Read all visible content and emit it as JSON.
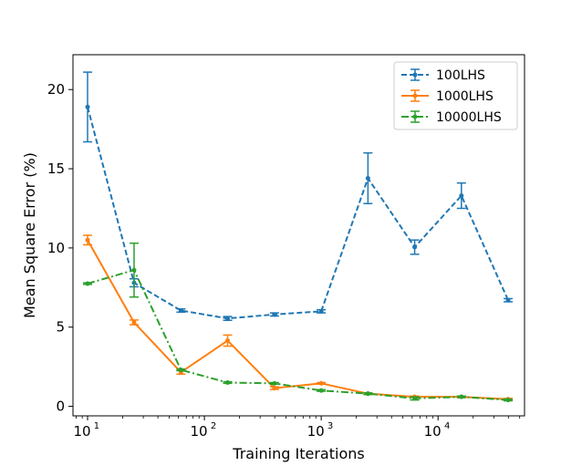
{
  "chart_data": {
    "type": "line",
    "title": "",
    "xlabel": "Training Iterations",
    "ylabel": "Mean Square Error (%)",
    "xscale": "log",
    "xlim": [
      7.5,
      55000
    ],
    "ylim": [
      -0.6,
      22.2
    ],
    "yticks": [
      0,
      5,
      10,
      15,
      20
    ],
    "xticks": [
      {
        "value": 10,
        "base": "10",
        "exp": "1"
      },
      {
        "value": 100,
        "base": "10",
        "exp": "2"
      },
      {
        "value": 1000,
        "base": "10",
        "exp": "3"
      },
      {
        "value": 10000,
        "base": "10",
        "exp": "4"
      }
    ],
    "legend_position": "top-right",
    "series": [
      {
        "name": "100LHS",
        "color": "#1f77b4",
        "linestyle": "dashed",
        "x": [
          10,
          25,
          63,
          158,
          398,
          1000,
          2512,
          6310,
          15849,
          39811
        ],
        "y": [
          18.9,
          7.8,
          6.05,
          5.55,
          5.8,
          6.0,
          14.4,
          10.05,
          13.3,
          6.7
        ],
        "err": [
          2.2,
          0.25,
          0.1,
          0.12,
          0.1,
          0.1,
          1.6,
          0.45,
          0.8,
          0.1
        ]
      },
      {
        "name": "1000LHS",
        "color": "#ff7f0e",
        "linestyle": "solid",
        "x": [
          10,
          25,
          63,
          158,
          398,
          1000,
          2512,
          6310,
          15849,
          39811
        ],
        "y": [
          10.5,
          5.3,
          2.15,
          4.15,
          1.15,
          1.45,
          0.8,
          0.6,
          0.6,
          0.45
        ],
        "err": [
          0.3,
          0.15,
          0.12,
          0.35,
          0.08,
          0.05,
          0.05,
          0.05,
          0.05,
          0.05
        ]
      },
      {
        "name": "10000LHS",
        "color": "#2ca02c",
        "linestyle": "dashdot",
        "x": [
          10,
          25,
          63,
          158,
          398,
          1000,
          2512,
          6310,
          15849,
          39811
        ],
        "y": [
          7.75,
          8.6,
          2.3,
          1.5,
          1.45,
          1.0,
          0.8,
          0.5,
          0.6,
          0.4
        ],
        "err": [
          0.05,
          1.7,
          0.05,
          0.05,
          0.05,
          0.05,
          0.05,
          0.1,
          0.05,
          0.05
        ]
      }
    ]
  }
}
